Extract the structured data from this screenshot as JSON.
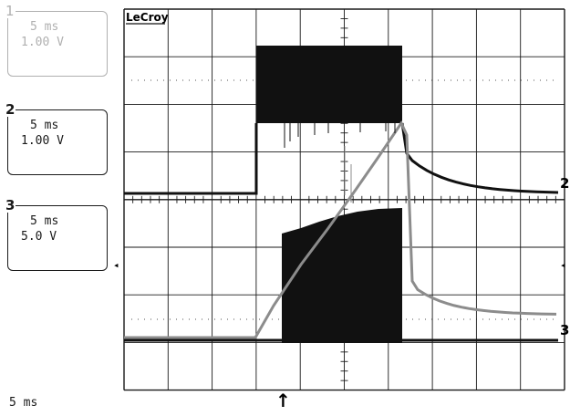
{
  "brand": "LeCroy",
  "channels": [
    {
      "number": "1",
      "timebase": "5 ms",
      "volts_per_div": "1.00 V",
      "active": false
    },
    {
      "number": "2",
      "timebase": "5 ms",
      "volts_per_div": "1.00 V",
      "active": true
    },
    {
      "number": "3",
      "timebase": "5 ms",
      "volts_per_div": "5.0 V",
      "active": true
    }
  ],
  "trace_labels": [
    "2",
    "3"
  ],
  "timebase": "5 ms",
  "trigger_marker": "↑",
  "level_marker": "◂",
  "grid": {
    "divisions_x": 10,
    "divisions_y": 8,
    "minor_ticks_per_division": 5
  },
  "colors": {
    "trace_dark": "#111111",
    "trace_gray": "#8c8c8c",
    "grid": "#1a1a1a",
    "dim_text": "#b0b0b0"
  }
}
